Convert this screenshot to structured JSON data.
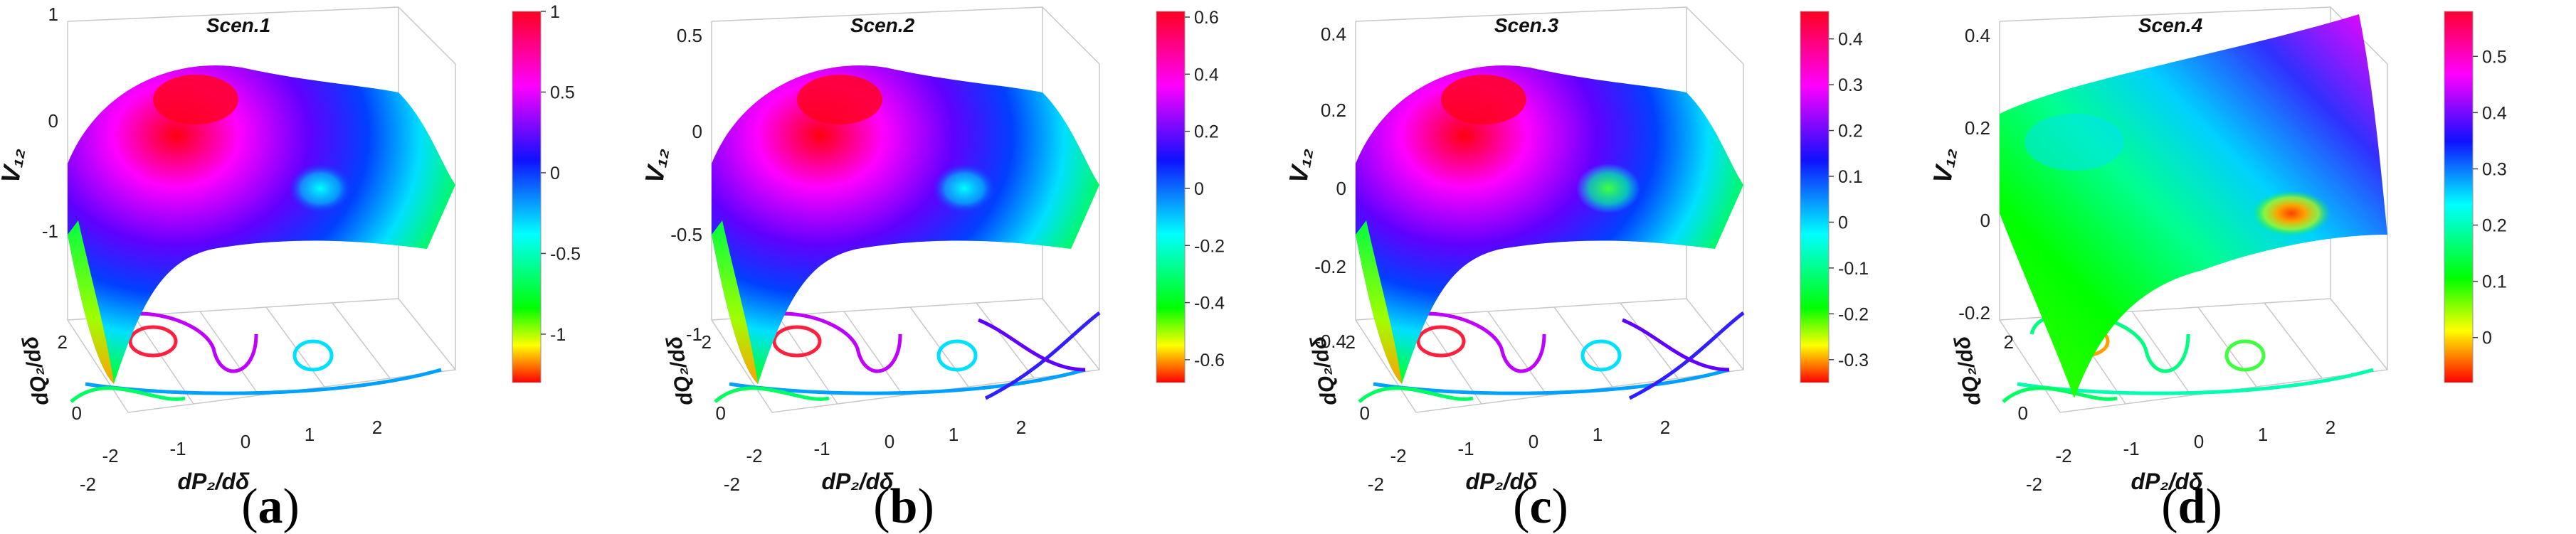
{
  "figure": {
    "panels": [
      {
        "caption_open": "(",
        "caption_letter": "a",
        "caption_close": ")",
        "chart_data": {
          "type": "surface",
          "title": "Scen.1",
          "zlabel": "V₁₂",
          "xlabel": "dP₂/dδ",
          "ylabel": "dQ₂/dδ",
          "x_ticks": [
            "-2",
            "-1",
            "0",
            "1",
            "2"
          ],
          "y_ticks": [
            "-2",
            "0",
            "2"
          ],
          "z_ticks": [
            "1",
            "0",
            "-1"
          ],
          "colorbar_ticks": [
            "1",
            "0.5",
            "0",
            "-0.5",
            "-1"
          ],
          "colorbar_range": [
            -1.3,
            1.0
          ],
          "xlim": [
            -2.5,
            2.5
          ],
          "ylim": [
            -2.5,
            2.5
          ]
        }
      },
      {
        "caption_open": "(",
        "caption_letter": "b",
        "caption_close": ")",
        "chart_data": {
          "type": "surface",
          "title": "Scen.2",
          "zlabel": "V₁₂",
          "xlabel": "dP₂/dδ",
          "ylabel": "dQ₂/dδ",
          "x_ticks": [
            "-2",
            "-1",
            "0",
            "1",
            "2"
          ],
          "y_ticks": [
            "-2",
            "0",
            "2"
          ],
          "z_ticks": [
            "0.5",
            "0",
            "-0.5",
            "-1"
          ],
          "colorbar_ticks": [
            "0.6",
            "0.4",
            "0.2",
            "0",
            "-0.2",
            "-0.4",
            "-0.6"
          ],
          "colorbar_range": [
            -0.68,
            0.62
          ],
          "xlim": [
            -2.5,
            2.5
          ],
          "ylim": [
            -2.5,
            2.5
          ]
        }
      },
      {
        "caption_open": "(",
        "caption_letter": "c",
        "caption_close": ")",
        "chart_data": {
          "type": "surface",
          "title": "Scen.3",
          "zlabel": "V₁₂",
          "xlabel": "dP₂/dδ",
          "ylabel": "dQ₂/dδ",
          "x_ticks": [
            "-2",
            "-1",
            "0",
            "1",
            "2"
          ],
          "y_ticks": [
            "-2",
            "0",
            "2"
          ],
          "z_ticks": [
            "0.4",
            "0.2",
            "0",
            "-0.2",
            "-0.4"
          ],
          "colorbar_ticks": [
            "0.4",
            "0.3",
            "0.2",
            "0.1",
            "0",
            "-0.1",
            "-0.2",
            "-0.3"
          ],
          "colorbar_range": [
            -0.35,
            0.46
          ],
          "xlim": [
            -2.5,
            2.5
          ],
          "ylim": [
            -2.5,
            2.5
          ]
        }
      },
      {
        "caption_open": "(",
        "caption_letter": "d",
        "caption_close": ")",
        "chart_data": {
          "type": "surface",
          "title": "Scen.4",
          "zlabel": "V₁₂",
          "xlabel": "dP₂/dδ",
          "ylabel": "dQ₂/dδ",
          "x_ticks": [
            "-2",
            "-1",
            "0",
            "1",
            "2"
          ],
          "y_ticks": [
            "-2",
            "0",
            "2"
          ],
          "z_ticks": [
            "0.4",
            "0.2",
            "0",
            "-0.2"
          ],
          "colorbar_ticks": [
            "0.5",
            "0.4",
            "0.3",
            "0.2",
            "0.1",
            "0"
          ],
          "colorbar_range": [
            -0.08,
            0.58
          ],
          "xlim": [
            -2.5,
            2.5
          ],
          "ylim": [
            -2.5,
            2.5
          ]
        }
      }
    ]
  }
}
